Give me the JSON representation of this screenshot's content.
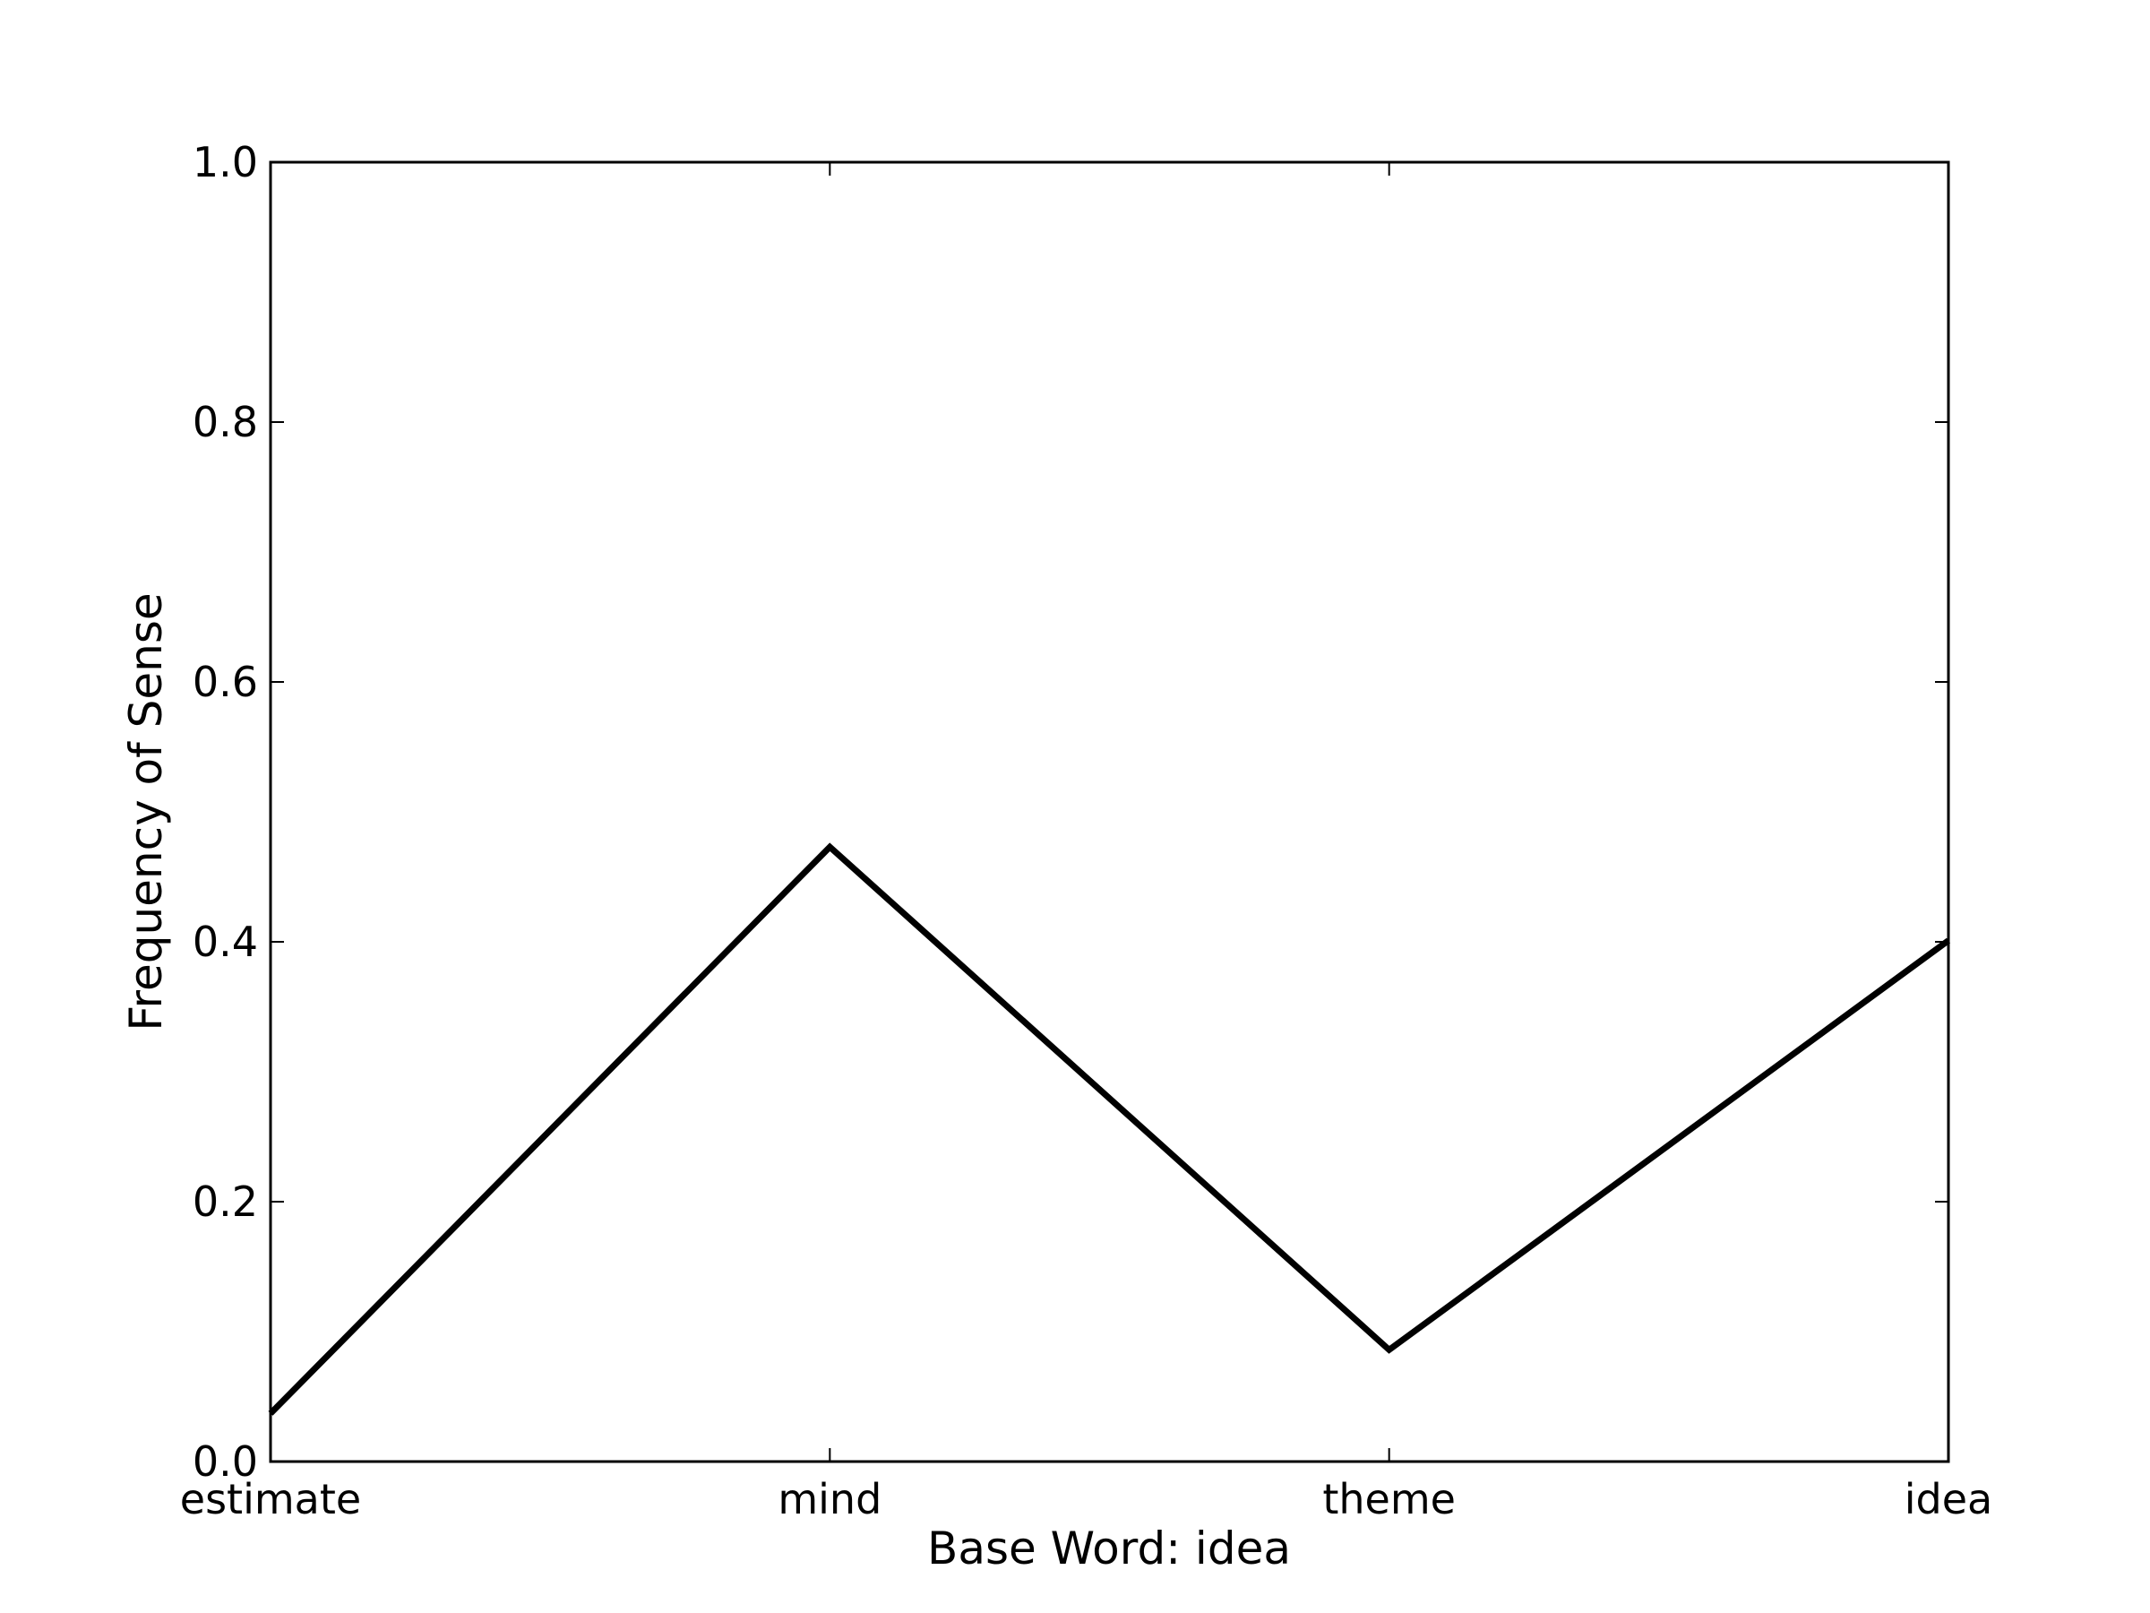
{
  "chart_data": {
    "type": "line",
    "title": "",
    "xlabel": "Base Word: idea",
    "ylabel": "Frequency of Sense",
    "categories": [
      "estimate",
      "mind",
      "theme",
      "idea"
    ],
    "series": [
      {
        "values": [
          0.037,
          0.473,
          0.086,
          0.401
        ]
      }
    ],
    "ylim": [
      0.0,
      1.0
    ],
    "yticks": [
      "0.0",
      "0.2",
      "0.4",
      "0.6",
      "0.8",
      "1.0"
    ],
    "grid": false,
    "line_color": "#000000"
  }
}
